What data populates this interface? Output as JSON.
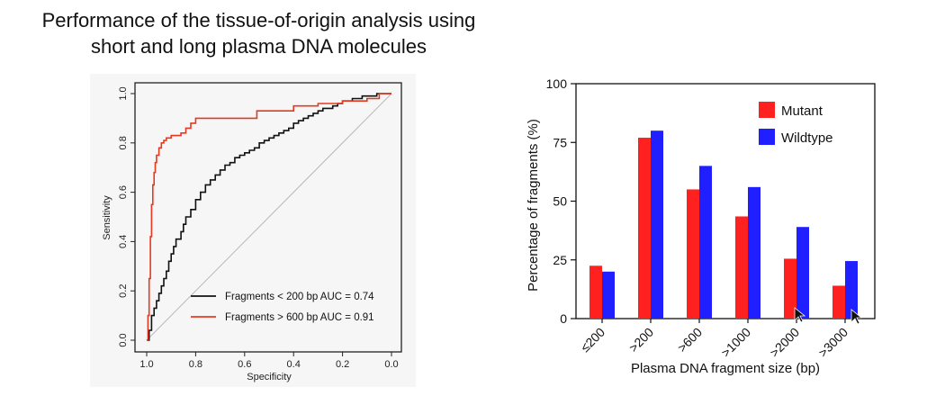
{
  "slide_title": {
    "line1": "Performance of the tissue-of-origin analysis using",
    "line2": "short and long plasma DNA molecules"
  },
  "chart_data": [
    {
      "type": "line",
      "subtype": "roc",
      "xlabel": "Specificity",
      "ylabel": "Sensitivity",
      "xlim": [
        1.0,
        0.0
      ],
      "ylim": [
        0.0,
        1.0
      ],
      "x_reversed": true,
      "xticks": [
        "1.0",
        "0.8",
        "0.6",
        "0.4",
        "0.2",
        "0.0"
      ],
      "yticks": [
        "0.0",
        "0.2",
        "0.4",
        "0.6",
        "0.8",
        "1.0"
      ],
      "reference_line": true,
      "legend_position": "bottom-right",
      "series": [
        {
          "name": "Fragments < 200 bp AUC = 0.74",
          "color": "#111111",
          "specificity": [
            1.0,
            0.99,
            0.99,
            0.98,
            0.98,
            0.97,
            0.96,
            0.95,
            0.94,
            0.93,
            0.92,
            0.91,
            0.9,
            0.89,
            0.88,
            0.86,
            0.85,
            0.84,
            0.82,
            0.8,
            0.78,
            0.76,
            0.74,
            0.72,
            0.7,
            0.68,
            0.66,
            0.64,
            0.62,
            0.6,
            0.58,
            0.56,
            0.54,
            0.52,
            0.5,
            0.48,
            0.46,
            0.44,
            0.42,
            0.4,
            0.38,
            0.36,
            0.34,
            0.32,
            0.3,
            0.28,
            0.26,
            0.24,
            0.22,
            0.2,
            0.18,
            0.16,
            0.14,
            0.12,
            0.1,
            0.08,
            0.06,
            0.04,
            0.02,
            0.0
          ],
          "sensitivity": [
            0.0,
            0.01,
            0.04,
            0.07,
            0.1,
            0.13,
            0.16,
            0.19,
            0.22,
            0.25,
            0.28,
            0.32,
            0.35,
            0.38,
            0.41,
            0.44,
            0.47,
            0.5,
            0.53,
            0.57,
            0.6,
            0.63,
            0.65,
            0.67,
            0.69,
            0.71,
            0.72,
            0.74,
            0.75,
            0.76,
            0.77,
            0.78,
            0.8,
            0.81,
            0.82,
            0.83,
            0.84,
            0.85,
            0.86,
            0.88,
            0.89,
            0.9,
            0.91,
            0.92,
            0.93,
            0.94,
            0.94,
            0.95,
            0.96,
            0.97,
            0.97,
            0.98,
            0.98,
            0.99,
            0.99,
            0.99,
            1.0,
            1.0,
            1.0,
            1.0
          ]
        },
        {
          "name": "Fragments > 600 bp AUC = 0.91",
          "color": "#e8381f",
          "specificity": [
            1.0,
            0.995,
            0.99,
            0.985,
            0.98,
            0.975,
            0.97,
            0.965,
            0.96,
            0.95,
            0.94,
            0.93,
            0.92,
            0.91,
            0.9,
            0.88,
            0.86,
            0.84,
            0.84,
            0.82,
            0.82,
            0.8,
            0.8,
            0.75,
            0.7,
            0.65,
            0.6,
            0.55,
            0.55,
            0.5,
            0.45,
            0.4,
            0.35,
            0.3,
            0.25,
            0.2,
            0.15,
            0.1,
            0.07,
            0.05,
            0.02,
            0.0
          ],
          "sensitivity": [
            0.0,
            0.1,
            0.25,
            0.42,
            0.55,
            0.63,
            0.68,
            0.72,
            0.75,
            0.78,
            0.8,
            0.81,
            0.82,
            0.82,
            0.83,
            0.83,
            0.84,
            0.84,
            0.86,
            0.86,
            0.88,
            0.88,
            0.9,
            0.9,
            0.9,
            0.9,
            0.9,
            0.9,
            0.93,
            0.93,
            0.93,
            0.95,
            0.95,
            0.96,
            0.96,
            0.97,
            0.97,
            0.98,
            0.98,
            1.0,
            1.0,
            1.0
          ]
        }
      ]
    },
    {
      "type": "bar",
      "xlabel": "Plasma DNA fragment size (bp)",
      "ylabel": "Percentage of fragments (%)",
      "ylim": [
        0,
        100
      ],
      "yticks": [
        "0",
        "25",
        "50",
        "75",
        "100"
      ],
      "categories": [
        "≤200",
        ">200",
        ">600",
        ">1000",
        ">2000",
        ">3000"
      ],
      "legend_position": "top-right",
      "series": [
        {
          "name": "Mutant",
          "color": "#ff2020",
          "values": [
            22.5,
            77,
            55,
            43.5,
            25.5,
            14
          ]
        },
        {
          "name": "Wildtype",
          "color": "#1f1fff",
          "values": [
            20,
            80,
            65,
            56,
            39,
            24.5
          ]
        }
      ]
    }
  ]
}
